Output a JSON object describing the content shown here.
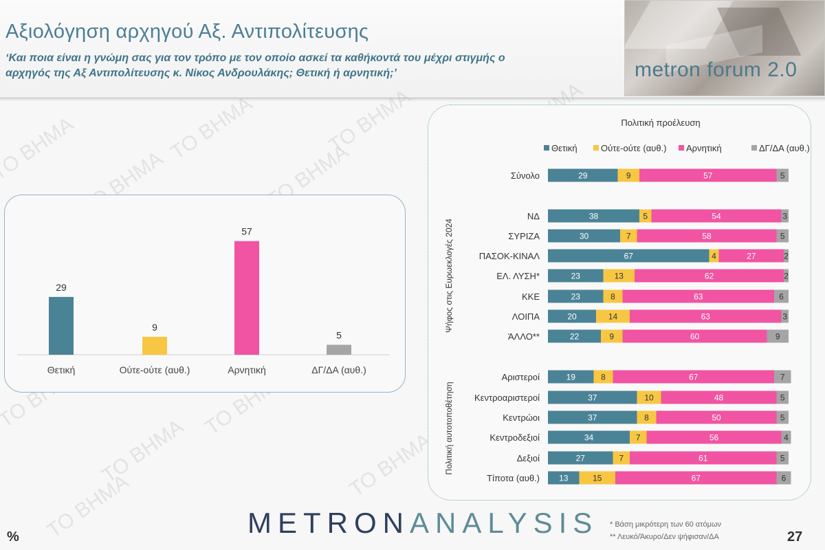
{
  "header": {
    "title": "Αξιολόγηση αρχηγού Αξ. Αντιπολίτευσης",
    "question_line1": "‘Και ποια είναι η γνώμη σας για τον τρόπο με τον οποίο ασκεί τα καθήκοντά του μέχρι στιγμής ο",
    "question_line2": "αρχηγός της Αξ Αντιπολίτευσης κ. Νίκος Ανδρουλάκης; Θετική ή αρνητική;’",
    "brand": "metron forum 2.0"
  },
  "watermark": "ΤΟ ΒΗΜΑ",
  "colors": {
    "positive": "#4b8396",
    "neutral": "#f7c744",
    "negative": "#f054a2",
    "dk": "#a5a5a5"
  },
  "chart_data": [
    {
      "type": "bar",
      "categories": [
        "Θετική",
        "Ούτε-ούτε (αυθ.)",
        "Αρνητική",
        "ΔΓ/ΔΑ (αυθ.)"
      ],
      "values": [
        29,
        9,
        57,
        5
      ],
      "bar_colors": [
        "#4b8396",
        "#f7c744",
        "#f054a2",
        "#a5a5a5"
      ],
      "ylim": [
        0,
        60
      ]
    },
    {
      "type": "bar",
      "orientation": "horizontal",
      "stacked": true,
      "title": "Πολιτική προέλευση",
      "legend_position": "top",
      "series": [
        {
          "name": "Θετική",
          "color": "#4b8396"
        },
        {
          "name": "Ούτε-ούτε (αυθ.)",
          "color": "#f7c744"
        },
        {
          "name": "Αρνητική",
          "color": "#f054a2"
        },
        {
          "name": "ΔΓ/ΔΑ (αυθ.)",
          "color": "#a5a5a5"
        }
      ],
      "groups": [
        {
          "label": "",
          "rows": [
            {
              "label": "Σύνολο",
              "values": [
                29,
                9,
                57,
                5
              ]
            }
          ]
        },
        {
          "label": "Ψήφος στις Ευρωεκλογές 2024",
          "rows": [
            {
              "label": "ΝΔ",
              "values": [
                38,
                5,
                54,
                3
              ]
            },
            {
              "label": "ΣΥΡΙΖΑ",
              "values": [
                30,
                7,
                58,
                5
              ]
            },
            {
              "label": "ΠΑΣΟΚ-ΚΙΝΑΛ",
              "values": [
                67,
                4,
                27,
                2
              ]
            },
            {
              "label": "ΕΛ. ΛΥΣΗ*",
              "values": [
                23,
                13,
                62,
                2
              ]
            },
            {
              "label": "ΚΚΕ",
              "values": [
                23,
                8,
                63,
                6
              ]
            },
            {
              "label": "ΛΟΙΠΑ",
              "values": [
                20,
                14,
                63,
                3
              ]
            },
            {
              "label": "ΆΛΛΟ**",
              "values": [
                22,
                9,
                60,
                9
              ]
            }
          ]
        },
        {
          "label": "Πολιτική αυτοτοποθέτηση",
          "rows": [
            {
              "label": "Αριστεροί",
              "values": [
                19,
                8,
                67,
                7
              ]
            },
            {
              "label": "Κεντροαριστεροί",
              "values": [
                37,
                10,
                48,
                5
              ]
            },
            {
              "label": "Κεντρώοι",
              "values": [
                37,
                8,
                50,
                5
              ]
            },
            {
              "label": "Κεντροδεξιοί",
              "values": [
                34,
                7,
                56,
                4
              ]
            },
            {
              "label": "Δεξιοί",
              "values": [
                27,
                7,
                61,
                5
              ]
            },
            {
              "label": "Τίποτα (αυθ.)",
              "values": [
                13,
                15,
                67,
                6
              ]
            }
          ]
        }
      ]
    }
  ],
  "footer": {
    "logo_part1": "METRON",
    "logo_part2": "ANALYSIS",
    "footnote1": "*  Βάση μικρότερη των 60 ατόμων",
    "footnote2": "** Λευκό/Άκυρο/Δεν ψήφισαν/ΔΑ",
    "unit": "%",
    "page": "27"
  }
}
